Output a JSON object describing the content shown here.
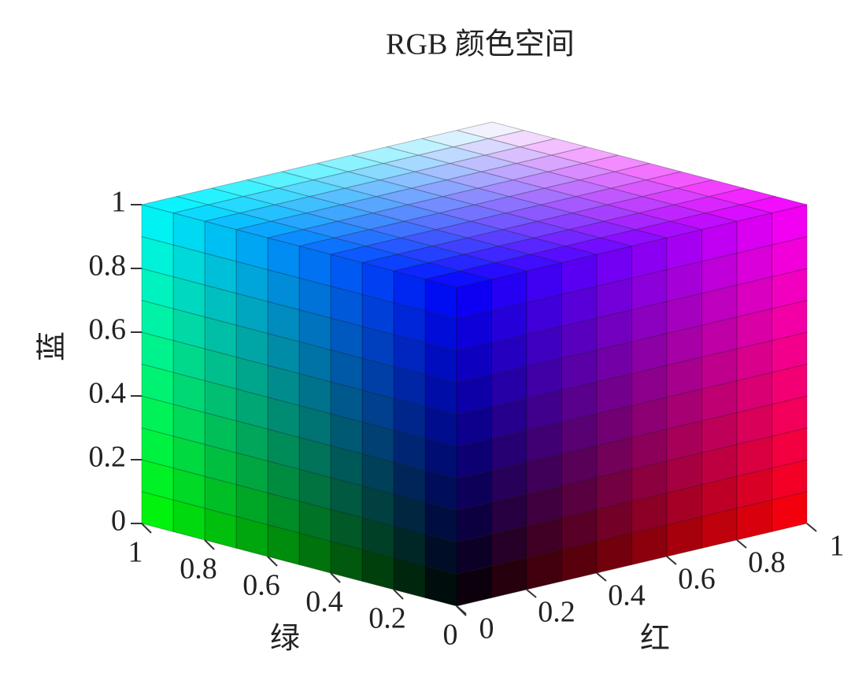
{
  "chart_data": {
    "type": "rgb-cube",
    "title": "RGB 颜色空间",
    "cells": 10,
    "axes": {
      "red": {
        "label": "红",
        "lim": [
          0,
          1
        ],
        "ticks": [
          0,
          0.2,
          0.4,
          0.6,
          0.8,
          1
        ]
      },
      "green": {
        "label": "绿",
        "lim": [
          0,
          1
        ],
        "ticks": [
          0,
          0.2,
          0.4,
          0.6,
          0.8,
          1
        ]
      },
      "blue": {
        "label": "蓝",
        "lim": [
          0,
          1
        ],
        "ticks": [
          0,
          0.2,
          0.4,
          0.6,
          0.8,
          1
        ]
      }
    }
  }
}
